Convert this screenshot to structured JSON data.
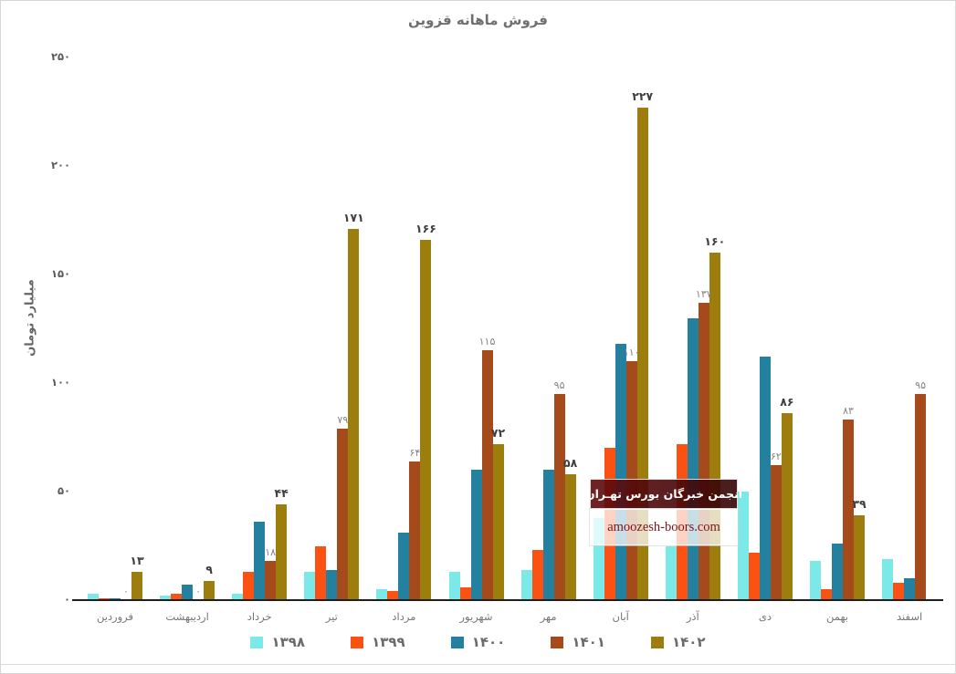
{
  "title": "فروش ماهانه قزوین",
  "y_axis": {
    "label": "میلیارد تومان"
  },
  "watermark": {
    "line1": "انجمن خبرگان بورس تهـران",
    "line2": "amoozesh-boors.com"
  },
  "chart_data": {
    "type": "bar",
    "title": "فروش ماهانه قزوین",
    "xlabel": "",
    "ylabel": "میلیارد تومان",
    "ylim": [
      0,
      250
    ],
    "y_ticks": [
      0,
      50,
      100,
      150,
      200,
      250
    ],
    "grid": false,
    "legend_position": "bottom",
    "digit_style": "persian",
    "categories": [
      "فروردین",
      "اردیبهشت",
      "خرداد",
      "تیر",
      "مرداد",
      "شهریور",
      "مهر",
      "آبان",
      "آذر",
      "دی",
      "بهمن",
      "اسفند"
    ],
    "series": [
      {
        "name": "۱۳۹۸",
        "year": "1398",
        "color": "#7CE9E9",
        "show_labels": false,
        "label_style": "gray",
        "values": [
          3,
          2,
          3,
          13,
          5,
          13,
          14,
          38,
          25,
          50,
          18,
          19
        ]
      },
      {
        "name": "۱۳۹۹",
        "year": "1399",
        "color": "#FB5113",
        "show_labels": false,
        "label_style": "gray",
        "values": [
          1,
          3,
          13,
          25,
          4,
          6,
          23,
          70,
          72,
          22,
          5,
          8
        ]
      },
      {
        "name": "۱۴۰۰",
        "year": "1400",
        "color": "#24809F",
        "show_labels": false,
        "label_style": "gray",
        "values": [
          1,
          7,
          36,
          14,
          31,
          60,
          60,
          118,
          130,
          112,
          26,
          10
        ]
      },
      {
        "name": "۱۴۰۱",
        "year": "1401",
        "color": "#A54A1B",
        "show_labels": true,
        "label_style": "gray",
        "values": [
          0,
          0,
          18,
          79,
          64,
          115,
          95,
          110,
          137,
          62,
          83,
          95
        ]
      },
      {
        "name": "۱۴۰۲",
        "year": "1402",
        "color": "#9D7D0D",
        "show_labels": true,
        "label_style": "black",
        "values": [
          13,
          9,
          44,
          171,
          166,
          72,
          58,
          227,
          160,
          86,
          39,
          null
        ]
      }
    ]
  }
}
